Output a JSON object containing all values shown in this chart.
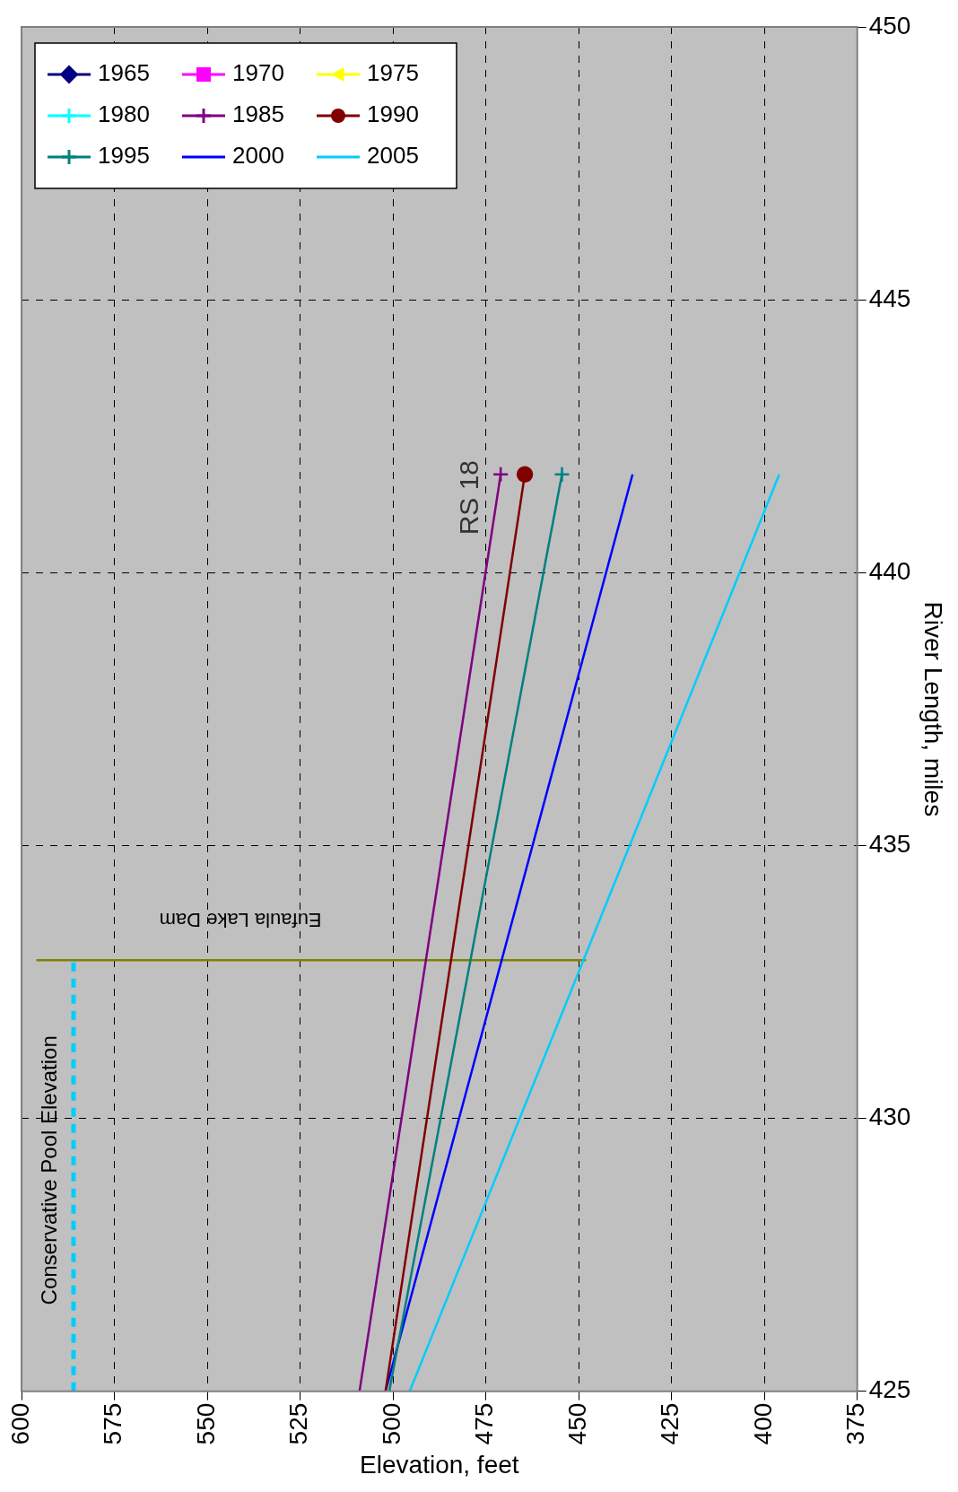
{
  "chart_data": {
    "type": "line",
    "xlabel": "Elevation, feet",
    "ylabel": "River Length, miles",
    "xlim": [
      600,
      375
    ],
    "xticks": [
      600,
      575,
      550,
      525,
      500,
      475,
      450,
      425,
      400,
      375
    ],
    "ylim": [
      425,
      450
    ],
    "yticks": [
      425,
      430,
      435,
      440,
      445,
      450
    ],
    "grid": true,
    "legend": "top left",
    "series": [
      {
        "name": "1965",
        "color": "#000080",
        "marker": "diamond",
        "values": [
          null,
          null
        ]
      },
      {
        "name": "1970",
        "color": "#ff00ff",
        "marker": "square",
        "values": [
          null,
          null
        ]
      },
      {
        "name": "1975",
        "color": "#ffff00",
        "marker": "triangle",
        "values": [
          null,
          null
        ]
      },
      {
        "name": "1980",
        "color": "#00ffff",
        "marker": "cross",
        "values": [
          null,
          null
        ]
      },
      {
        "name": "1985",
        "color": "#800080",
        "marker": "cross",
        "x": [
          509,
          471
        ],
        "values": [
          425,
          441.8
        ]
      },
      {
        "name": "1990",
        "color": "#800000",
        "marker": "circle",
        "x": [
          502,
          464.5
        ],
        "values": [
          425,
          441.8
        ]
      },
      {
        "name": "1995",
        "color": "#008080",
        "marker": "cross",
        "x": [
          501,
          454.5
        ],
        "values": [
          425,
          441.8
        ]
      },
      {
        "name": "2000",
        "color": "#0000ff",
        "marker": "none",
        "x": [
          502,
          435.5
        ],
        "values": [
          425,
          441.8
        ]
      },
      {
        "name": "2005",
        "color": "#00ccff",
        "marker": "none",
        "x": [
          495.5,
          396
        ],
        "values": [
          425,
          441.8
        ]
      },
      {
        "color": "#00ccff",
        "marker": "none",
        "line_style": "dashed",
        "x": [
          586,
          586
        ],
        "values": [
          425,
          432.9
        ]
      },
      {
        "color": "#808000",
        "marker": "none",
        "x": [
          596,
          448
        ],
        "values": [
          432.9,
          432.9
        ]
      }
    ],
    "annotations": [
      "RS 18",
      "Eufaula Lake Dam",
      "Conservative Pool Elevation"
    ]
  }
}
